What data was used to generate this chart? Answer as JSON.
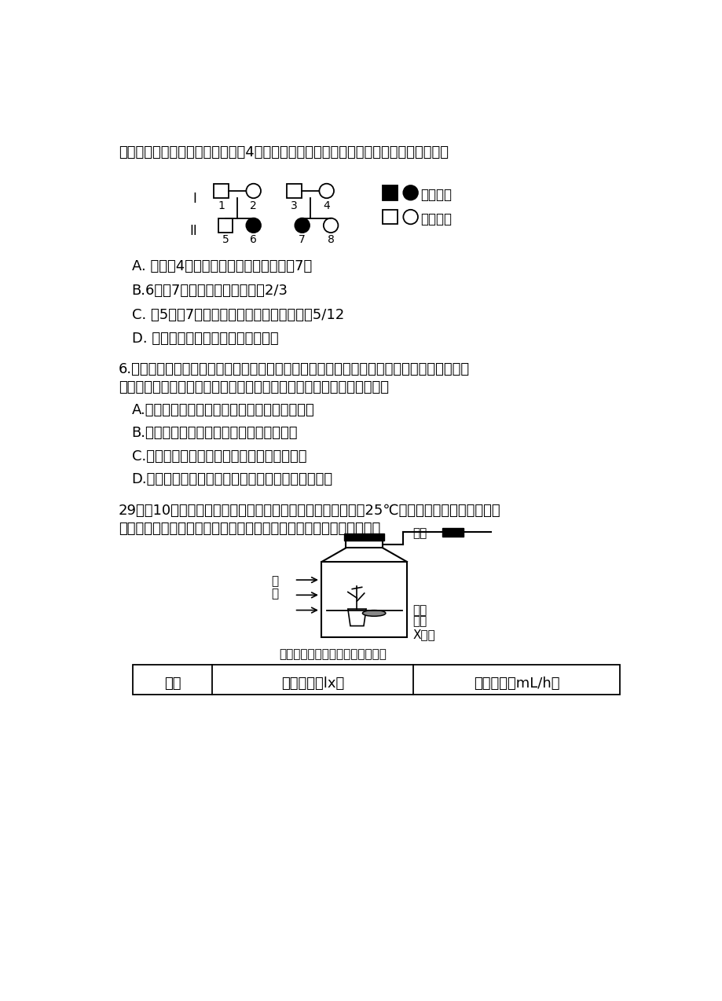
{
  "title_text": "图的两个患病家系中，已知亲代中4号与其他三人的基因型不同。下列分析判断错误的是",
  "q5_options": [
    "A. 子代的4人中，能确定出基因型的只有7号",
    "B.6号与7号基因型相同的概率为2/3",
    "C. 若5号与7号结婚，生育患病孩子的概率为5/12",
    "D. 两个家庭再生孩子患病的概率相等"
  ],
  "q6_intro_line1": "6.中国共产党第十九次全国代表大会中，将生态文明建设提到前所未有的高度，强调不能用环",
  "q6_intro_line2": "境破坏作为代价来换一时的发展。下列关于人与自然的叙述中，正确的是",
  "q6_options": [
    "A.大量引进外来物种必然提高生态系统的稳定性",
    "B.大力植树造林是缓解温室效应的根本措施",
    "C.生态农业可以提高生态系统的能量传递效率",
    "D.人类活动可以改变生态能量流动和群落演替的方向"
  ],
  "q29_intro_line1": "29．（10分）某兴趣小组利用如图所示的若干组实验装置，在25℃条件下进行了一系列实验，",
  "q29_intro_line2": "测定每次实验数据并求平均值，各组实验数据见表。请回答下列问题：",
  "diagram_labels": {
    "liquid_drop": "液滴",
    "sealed_room": "密闭",
    "small_room": "小室",
    "x_solution": "X溶液",
    "light": "光",
    "photo": "照",
    "caption": "装置内氧气充足，不考虑无氧呼吸"
  },
  "table_headers": [
    "组别",
    "光照强度（lx）",
    "液滴移动（mL/h）"
  ],
  "legend_sick": "患病男女",
  "legend_normal": "正常男女",
  "bg_color": "#ffffff"
}
